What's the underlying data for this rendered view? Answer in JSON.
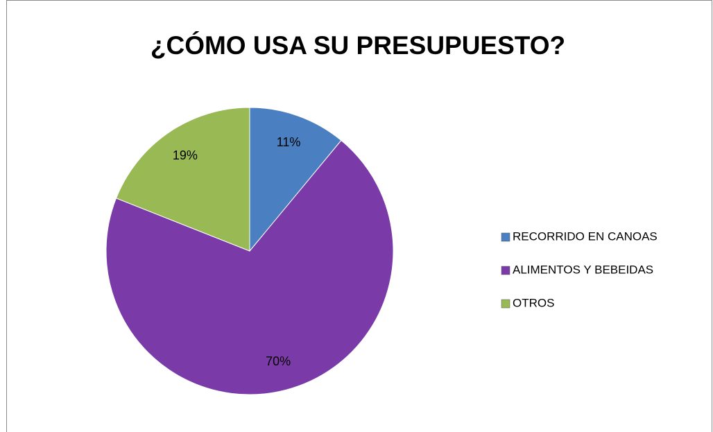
{
  "chart_data": {
    "type": "pie",
    "title": "¿CÓMO USA SU PRESUPUESTO?",
    "categories": [
      "RECORRIDO EN CANOAS",
      "ALIMENTOS Y BEBEIDAS",
      "OTROS"
    ],
    "values": [
      11,
      70,
      19
    ],
    "value_labels": [
      "11%",
      "70%",
      "19%"
    ],
    "colors": [
      "#4a7fc1",
      "#7a3aa8",
      "#98b954"
    ],
    "legend": "right"
  }
}
